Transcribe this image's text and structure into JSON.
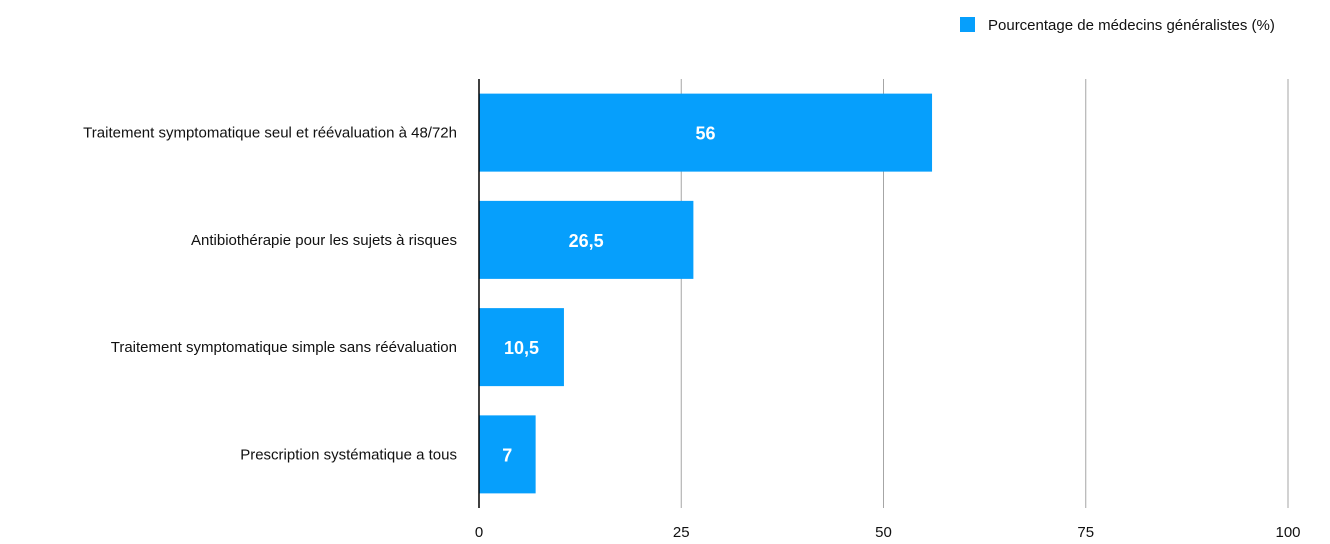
{
  "chart_data": {
    "type": "bar",
    "orientation": "horizontal",
    "categories": [
      "Traitement symptomatique seul et réévaluation à 48/72h",
      "Antibiothérapie pour les sujets à risques",
      "Traitement symptomatique simple sans réévaluation",
      "Prescription systématique a tous"
    ],
    "series": [
      {
        "name": "Pourcentage de médecins généralistes (%)",
        "values": [
          56,
          26.5,
          10.5,
          7
        ],
        "value_labels": [
          "56",
          "26,5",
          "10,5",
          "7"
        ],
        "color": "#069ffc"
      }
    ],
    "xlim": [
      0,
      100
    ],
    "x_ticks": [
      0,
      25,
      50,
      75,
      100
    ],
    "x_tick_labels": [
      "0",
      "25",
      "50",
      "75",
      "100"
    ],
    "grid": true,
    "legend_position": "top-right",
    "gridline_color": "#a6a6a6",
    "axis_color": "#000000"
  }
}
